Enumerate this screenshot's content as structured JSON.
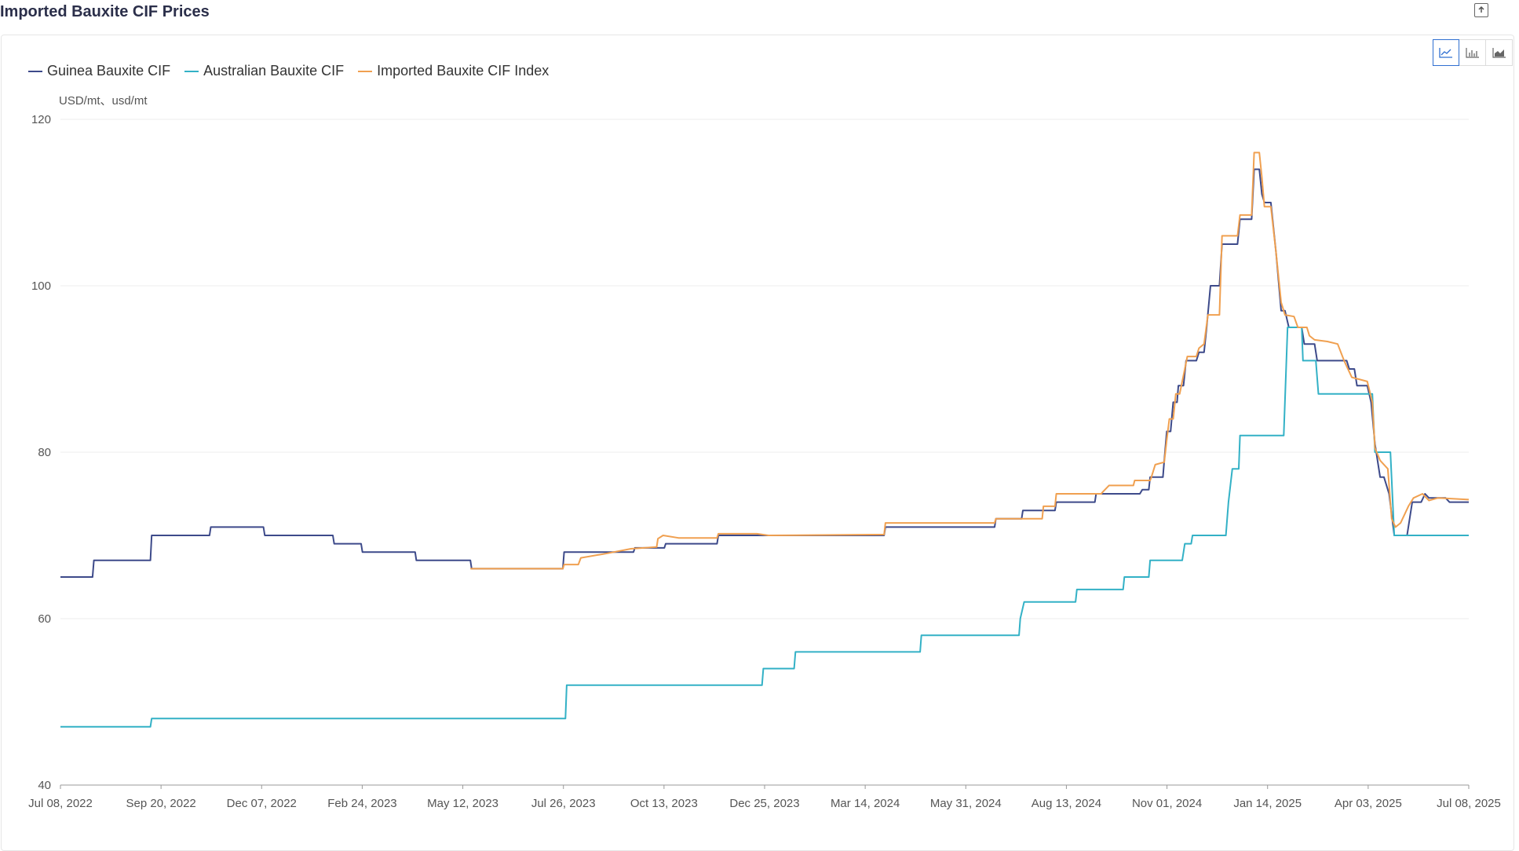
{
  "title": "Imported Bauxite CIF Prices",
  "unit_label": "USD/mt、usd/mt",
  "toolbar": {
    "export_icon": "export-icon",
    "views": [
      "line-chart-icon",
      "bar-chart-icon",
      "area-chart-icon"
    ],
    "active_view": "line-chart-icon"
  },
  "chart_data": {
    "type": "line",
    "title": "Imported Bauxite CIF Prices",
    "ylabel": "USD/mt、usd/mt",
    "ylim": [
      40,
      120
    ],
    "yticks": [
      40,
      60,
      80,
      100,
      120
    ],
    "xlim": [
      "2022-07-08",
      "2025-07-08"
    ],
    "xticks": [
      "Jul 08, 2022",
      "Sep 20, 2022",
      "Dec 07, 2022",
      "Feb 24, 2023",
      "May 12, 2023",
      "Jul 26, 2023",
      "Oct 13, 2023",
      "Dec 25, 2023",
      "Mar 14, 2024",
      "May 31, 2024",
      "Aug 13, 2024",
      "Nov 01, 2024",
      "Jan 14, 2025",
      "Apr 03, 2025",
      "Jul 08, 2025"
    ],
    "grid": true,
    "legend_position": "top-left",
    "series": [
      {
        "name": "Guinea Bauxite CIF",
        "color": "#3d4a8a",
        "points": [
          [
            "2022-07-08",
            65
          ],
          [
            "2022-08-02",
            65
          ],
          [
            "2022-08-03",
            67
          ],
          [
            "2022-09-16",
            67
          ],
          [
            "2022-09-17",
            70
          ],
          [
            "2022-11-01",
            70
          ],
          [
            "2022-11-02",
            71
          ],
          [
            "2022-12-13",
            71
          ],
          [
            "2022-12-14",
            70
          ],
          [
            "2023-02-05",
            70
          ],
          [
            "2023-02-06",
            69
          ],
          [
            "2023-02-27",
            69
          ],
          [
            "2023-02-28",
            68
          ],
          [
            "2023-04-10",
            68
          ],
          [
            "2023-04-11",
            67
          ],
          [
            "2023-05-23",
            67
          ],
          [
            "2023-05-24",
            66
          ],
          [
            "2023-08-03",
            66
          ],
          [
            "2023-08-04",
            68
          ],
          [
            "2023-09-27",
            68
          ],
          [
            "2023-09-28",
            68.5
          ],
          [
            "2023-10-21",
            68.5
          ],
          [
            "2023-10-22",
            69
          ],
          [
            "2023-12-01",
            69
          ],
          [
            "2023-12-02",
            70
          ],
          [
            "2024-04-09",
            70
          ],
          [
            "2024-04-10",
            71
          ],
          [
            "2024-07-04",
            71
          ],
          [
            "2024-07-05",
            72
          ],
          [
            "2024-07-25",
            72
          ],
          [
            "2024-07-26",
            73
          ],
          [
            "2024-08-20",
            73
          ],
          [
            "2024-08-21",
            74
          ],
          [
            "2024-09-20",
            74
          ],
          [
            "2024-09-21",
            75
          ],
          [
            "2024-10-25",
            75
          ],
          [
            "2024-10-27",
            75.5
          ],
          [
            "2024-11-01",
            75.5
          ],
          [
            "2024-11-02",
            77
          ],
          [
            "2024-11-12",
            77
          ],
          [
            "2024-11-13",
            79
          ],
          [
            "2024-11-15",
            82.5
          ],
          [
            "2024-11-18",
            82.5
          ],
          [
            "2024-11-20",
            86
          ],
          [
            "2024-11-23",
            86
          ],
          [
            "2024-11-24",
            88
          ],
          [
            "2024-11-28",
            88
          ],
          [
            "2024-11-30",
            91
          ],
          [
            "2024-12-08",
            91
          ],
          [
            "2024-12-10",
            92
          ],
          [
            "2024-12-14",
            92
          ],
          [
            "2024-12-16",
            95
          ],
          [
            "2024-12-19",
            100
          ],
          [
            "2024-12-26",
            100
          ],
          [
            "2024-12-28",
            105
          ],
          [
            "2025-01-09",
            105
          ],
          [
            "2025-01-11",
            108
          ],
          [
            "2025-01-20",
            108
          ],
          [
            "2025-01-22",
            114
          ],
          [
            "2025-01-26",
            114
          ],
          [
            "2025-01-28",
            111
          ],
          [
            "2025-01-30",
            110
          ],
          [
            "2025-02-04",
            110
          ],
          [
            "2025-02-08",
            104
          ],
          [
            "2025-02-12",
            97
          ],
          [
            "2025-02-15",
            97
          ],
          [
            "2025-02-18",
            95
          ],
          [
            "2025-02-28",
            95
          ],
          [
            "2025-03-02",
            93
          ],
          [
            "2025-03-10",
            93
          ],
          [
            "2025-03-12",
            91
          ],
          [
            "2025-04-04",
            91
          ],
          [
            "2025-04-06",
            90
          ],
          [
            "2025-04-10",
            90
          ],
          [
            "2025-04-12",
            88
          ],
          [
            "2025-04-20",
            88
          ],
          [
            "2025-04-23",
            86
          ],
          [
            "2025-04-26",
            81
          ],
          [
            "2025-04-30",
            77
          ],
          [
            "2025-05-03",
            77
          ],
          [
            "2025-05-07",
            75
          ],
          [
            "2025-05-11",
            70
          ],
          [
            "2025-05-21",
            70
          ],
          [
            "2025-05-25",
            74
          ],
          [
            "2025-06-01",
            74
          ],
          [
            "2025-06-04",
            75
          ],
          [
            "2025-06-07",
            74.5
          ],
          [
            "2025-06-20",
            74.5
          ],
          [
            "2025-06-23",
            74
          ],
          [
            "2025-07-08",
            74
          ]
        ]
      },
      {
        "name": "Australian Bauxite CIF",
        "color": "#33b1c6",
        "points": [
          [
            "2022-07-08",
            47
          ],
          [
            "2022-09-16",
            47
          ],
          [
            "2022-09-17",
            48
          ],
          [
            "2023-08-05",
            48
          ],
          [
            "2023-08-06",
            52
          ],
          [
            "2024-01-05",
            52
          ],
          [
            "2024-01-06",
            54
          ],
          [
            "2024-01-30",
            54
          ],
          [
            "2024-01-31",
            56
          ],
          [
            "2024-05-07",
            56
          ],
          [
            "2024-05-08",
            58
          ],
          [
            "2024-07-23",
            58
          ],
          [
            "2024-07-24",
            60
          ],
          [
            "2024-07-27",
            62
          ],
          [
            "2024-09-05",
            62
          ],
          [
            "2024-09-06",
            63.5
          ],
          [
            "2024-10-12",
            63.5
          ],
          [
            "2024-10-13",
            65
          ],
          [
            "2024-11-01",
            65
          ],
          [
            "2024-11-02",
            67
          ],
          [
            "2024-11-27",
            67
          ],
          [
            "2024-11-29",
            69
          ],
          [
            "2024-12-04",
            69
          ],
          [
            "2024-12-05",
            70
          ],
          [
            "2024-12-31",
            70
          ],
          [
            "2025-01-02",
            74
          ],
          [
            "2025-01-05",
            78
          ],
          [
            "2025-01-10",
            78
          ],
          [
            "2025-01-11",
            82
          ],
          [
            "2025-02-14",
            82
          ],
          [
            "2025-02-17",
            95
          ],
          [
            "2025-02-28",
            95
          ],
          [
            "2025-03-01",
            91
          ],
          [
            "2025-03-11",
            91
          ],
          [
            "2025-03-13",
            87
          ],
          [
            "2025-04-24",
            87
          ],
          [
            "2025-04-26",
            80
          ],
          [
            "2025-05-08",
            80
          ],
          [
            "2025-05-11",
            70
          ],
          [
            "2025-07-08",
            70
          ]
        ]
      },
      {
        "name": "Imported Bauxite CIF Index",
        "color": "#f0a050",
        "points": [
          [
            "2023-05-23",
            66
          ],
          [
            "2023-08-03",
            66
          ],
          [
            "2023-08-04",
            66.5
          ],
          [
            "2023-08-15",
            66.5
          ],
          [
            "2023-08-17",
            67.3
          ],
          [
            "2023-09-05",
            67.8
          ],
          [
            "2023-09-25",
            68.4
          ],
          [
            "2023-10-15",
            68.6
          ],
          [
            "2023-10-16",
            69.6
          ],
          [
            "2023-10-20",
            70
          ],
          [
            "2023-11-01",
            69.7
          ],
          [
            "2023-12-01",
            69.7
          ],
          [
            "2023-12-02",
            70.2
          ],
          [
            "2024-01-01",
            70.2
          ],
          [
            "2024-01-10",
            70
          ],
          [
            "2024-04-09",
            70.1
          ],
          [
            "2024-04-10",
            71.5
          ],
          [
            "2024-07-04",
            71.5
          ],
          [
            "2024-07-05",
            72
          ],
          [
            "2024-08-10",
            72
          ],
          [
            "2024-08-11",
            73.5
          ],
          [
            "2024-08-20",
            73.5
          ],
          [
            "2024-08-21",
            75
          ],
          [
            "2024-09-25",
            75
          ],
          [
            "2024-09-26",
            75.2
          ],
          [
            "2024-10-01",
            76
          ],
          [
            "2024-10-20",
            76
          ],
          [
            "2024-10-21",
            76.6
          ],
          [
            "2024-11-02",
            76.6
          ],
          [
            "2024-11-03",
            77
          ],
          [
            "2024-11-06",
            78.5
          ],
          [
            "2024-11-13",
            78.8
          ],
          [
            "2024-11-15",
            81.5
          ],
          [
            "2024-11-17",
            84
          ],
          [
            "2024-11-20",
            84
          ],
          [
            "2024-11-22",
            87
          ],
          [
            "2024-11-25",
            87
          ],
          [
            "2024-11-27",
            88.5
          ],
          [
            "2024-12-01",
            91.5
          ],
          [
            "2024-12-08",
            91.5
          ],
          [
            "2024-12-10",
            92.5
          ],
          [
            "2024-12-14",
            93
          ],
          [
            "2024-12-17",
            96.5
          ],
          [
            "2024-12-26",
            96.5
          ],
          [
            "2024-12-28",
            106
          ],
          [
            "2025-01-09",
            106
          ],
          [
            "2025-01-11",
            108.5
          ],
          [
            "2025-01-20",
            108.5
          ],
          [
            "2025-01-22",
            116
          ],
          [
            "2025-01-26",
            116
          ],
          [
            "2025-01-28",
            113
          ],
          [
            "2025-01-30",
            109.5
          ],
          [
            "2025-02-04",
            109.5
          ],
          [
            "2025-02-08",
            104
          ],
          [
            "2025-02-12",
            98
          ],
          [
            "2025-02-15",
            96.5
          ],
          [
            "2025-02-22",
            96.3
          ],
          [
            "2025-02-25",
            95
          ],
          [
            "2025-03-04",
            95
          ],
          [
            "2025-03-06",
            94
          ],
          [
            "2025-03-10",
            93.5
          ],
          [
            "2025-03-20",
            93.3
          ],
          [
            "2025-03-28",
            93
          ],
          [
            "2025-04-02",
            91
          ],
          [
            "2025-04-08",
            89
          ],
          [
            "2025-04-20",
            88.5
          ],
          [
            "2025-04-24",
            86
          ],
          [
            "2025-04-26",
            80.5
          ],
          [
            "2025-04-30",
            79
          ],
          [
            "2025-05-06",
            78
          ],
          [
            "2025-05-09",
            72
          ],
          [
            "2025-05-12",
            71
          ],
          [
            "2025-05-16",
            71.5
          ],
          [
            "2025-05-22",
            73.5
          ],
          [
            "2025-05-26",
            74.5
          ],
          [
            "2025-06-02",
            75
          ],
          [
            "2025-06-07",
            74.2
          ],
          [
            "2025-06-14",
            74.5
          ],
          [
            "2025-07-08",
            74.3
          ]
        ]
      }
    ]
  }
}
